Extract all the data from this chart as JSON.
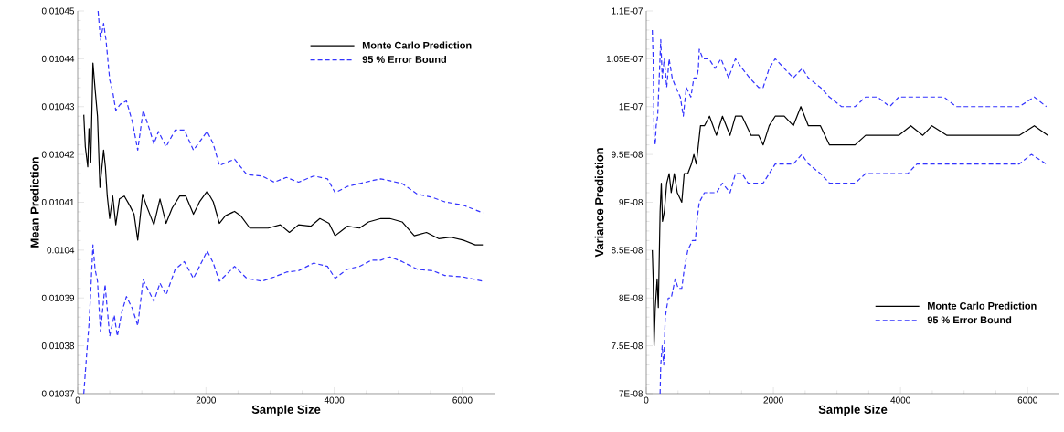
{
  "chart_data": [
    {
      "type": "line",
      "xlabel": "Sample Size",
      "ylabel": "Mean Prediction",
      "xlim": [
        0,
        6500
      ],
      "ylim": [
        0.01037,
        0.01045
      ],
      "xticks": [
        0,
        2000,
        4000,
        6000
      ],
      "yticks": [
        0.01037,
        0.01038,
        0.01039,
        0.0104,
        0.01041,
        0.01042,
        0.01043,
        0.01044,
        0.01045
      ],
      "legend": "top right",
      "series": [
        {
          "name": "Monte Carlo Prediction",
          "color": "#000000",
          "line_style": "solid",
          "x": [
            95,
            119,
            157,
            176,
            204,
            238,
            271,
            309,
            347,
            404,
            432,
            461,
            499,
            546,
            594,
            651,
            727,
            808,
            879,
            936,
            1012,
            1069,
            1188,
            1283,
            1378,
            1473,
            1591,
            1686,
            1805,
            1900,
            2019,
            2114,
            2209,
            2304,
            2446,
            2541,
            2684,
            2969,
            3159,
            3301,
            3444,
            3634,
            3776,
            3919,
            4014,
            4204,
            4394,
            4536,
            4726,
            4869,
            5059,
            5249,
            5439,
            5629,
            5819,
            6009,
            6199,
            6318
          ],
          "values": [
            0.0104283,
            0.0104216,
            0.0104174,
            0.0104254,
            0.0104184,
            0.0104391,
            0.0104337,
            0.010428,
            0.0104131,
            0.0104209,
            0.0104174,
            0.0104113,
            0.0104066,
            0.0104113,
            0.0104053,
            0.0104107,
            0.0104113,
            0.0104094,
            0.0104075,
            0.0104021,
            0.0104117,
            0.0104094,
            0.0104053,
            0.0104107,
            0.0104056,
            0.0104088,
            0.0104113,
            0.0104113,
            0.0104075,
            0.0104101,
            0.0104123,
            0.0104101,
            0.0104056,
            0.0104072,
            0.0104081,
            0.0104072,
            0.0104046,
            0.0104046,
            0.0104053,
            0.0104037,
            0.0104053,
            0.010405,
            0.0104066,
            0.0104056,
            0.010403,
            0.010405,
            0.0104046,
            0.0104059,
            0.0104066,
            0.0104066,
            0.0104059,
            0.010403,
            0.0104037,
            0.0104024,
            0.0104027,
            0.0104021,
            0.0104011,
            0.0104011
          ]
        },
        {
          "name": "95 % Error Bound",
          "color": "#3333ff",
          "line_style": "dashed",
          "x": [
            318,
            356,
            404,
            442,
            499,
            546,
            594,
            665,
            760,
            855,
            936,
            1021,
            1116,
            1188,
            1259,
            1378,
            1520,
            1663,
            1805,
            2019,
            2114,
            2209,
            2446,
            2636,
            2874,
            3064,
            3254,
            3444,
            3681,
            3895,
            4014,
            4204,
            4394,
            4584,
            4726,
            4869,
            5059,
            5296,
            5534,
            5724,
            6009,
            6318
          ],
          "values": [
            0.01045,
            0.0104439,
            0.0104474,
            0.0104439,
            0.0104356,
            0.0104331,
            0.0104292,
            0.0104305,
            0.0104312,
            0.0104267,
            0.0104209,
            0.0104292,
            0.0104254,
            0.0104222,
            0.0104248,
            0.0104216,
            0.0104251,
            0.0104251,
            0.0104209,
            0.0104248,
            0.0104222,
            0.0104177,
            0.010419,
            0.0104158,
            0.0104155,
            0.0104142,
            0.0104152,
            0.0104142,
            0.0104155,
            0.0104149,
            0.010412,
            0.0104133,
            0.0104139,
            0.0104145,
            0.0104149,
            0.0104145,
            0.0104139,
            0.0104117,
            0.010411,
            0.0104101,
            0.0104094,
            0.0104078
          ]
        },
        {
          "color": "#3333ff",
          "line_style": "dashed",
          "x": [
            95,
            143,
            176,
            204,
            238,
            271,
            309,
            356,
            427,
            499,
            570,
            618,
            689,
            760,
            855,
            936,
            1021,
            1188,
            1283,
            1378,
            1520,
            1663,
            1805,
            2019,
            2114,
            2209,
            2446,
            2636,
            2874,
            3064,
            3254,
            3444,
            3681,
            3895,
            4014,
            4204,
            4394,
            4584,
            4726,
            4869,
            5059,
            5296,
            5534,
            5724,
            6009,
            6318
          ],
          "values": [
            0.01037,
            0.0103788,
            0.0103845,
            0.0103915,
            0.0104011,
            0.010396,
            0.0103935,
            0.0103829,
            0.0103928,
            0.010382,
            0.0103864,
            0.010382,
            0.0103871,
            0.0103903,
            0.0103877,
            0.0103842,
            0.0103938,
            0.0103893,
            0.0103931,
            0.0103906,
            0.010396,
            0.0103976,
            0.0103941,
            0.0103998,
            0.0103973,
            0.0103935,
            0.0103966,
            0.0103941,
            0.0103935,
            0.0103944,
            0.0103954,
            0.0103957,
            0.0103973,
            0.0103966,
            0.0103941,
            0.010396,
            0.0103966,
            0.0103979,
            0.0103979,
            0.0103986,
            0.0103976,
            0.010396,
            0.0103957,
            0.0103947,
            0.0103944,
            0.0103935
          ]
        }
      ]
    },
    {
      "type": "line",
      "xlabel": "Sample Size",
      "ylabel": "Variance Prediction",
      "xlim": [
        0,
        6500
      ],
      "ylim": [
        7e-08,
        1.1e-07
      ],
      "xticks": [
        0,
        2000,
        4000,
        6000
      ],
      "yticks": [
        {
          "value": 7e-08,
          "label": "7E-08"
        },
        {
          "value": 7.5e-08,
          "label": "7.5E-08"
        },
        {
          "value": 8e-08,
          "label": "8E-08"
        },
        {
          "value": 8.5e-08,
          "label": "8.5E-08"
        },
        {
          "value": 9e-08,
          "label": "9E-08"
        },
        {
          "value": 9.5e-08,
          "label": "9.5E-08"
        },
        {
          "value": 1e-07,
          "label": "1E-07"
        },
        {
          "value": 1.05e-07,
          "label": "1.05E-07"
        },
        {
          "value": 1.1e-07,
          "label": "1.1E-07"
        }
      ],
      "legend": "bottom right",
      "series": [
        {
          "name": "Monte Carlo Prediction",
          "color": "#000000",
          "line_style": "solid",
          "x": [
            95,
            109,
            123,
            142,
            171,
            190,
            218,
            237,
            256,
            284,
            322,
            360,
            393,
            441,
            488,
            559,
            597,
            654,
            711,
            749,
            787,
            820,
            853,
            915,
            995,
            1104,
            1199,
            1318,
            1403,
            1507,
            1650,
            1768,
            1839,
            1934,
            2029,
            2171,
            2313,
            2432,
            2550,
            2740,
            2882,
            3072,
            3285,
            3451,
            3640,
            3830,
            3972,
            4162,
            4351,
            4494,
            4731,
            4920,
            5110,
            5299,
            5489,
            5679,
            5868,
            6105,
            6318
          ],
          "values": [
            8.5e-08,
            8.2e-08,
            7.5e-08,
            7.9e-08,
            8.2e-08,
            7.9e-08,
            8.9e-08,
            9.2e-08,
            8.8e-08,
            8.9e-08,
            9.2e-08,
            9.3e-08,
            9.1e-08,
            9.3e-08,
            9.1e-08,
            9e-08,
            9.3e-08,
            9.3e-08,
            9.4e-08,
            9.5e-08,
            9.4e-08,
            9.6e-08,
            9.8e-08,
            9.8e-08,
            9.9e-08,
            9.7e-08,
            9.9e-08,
            9.7e-08,
            9.9e-08,
            9.9e-08,
            9.7e-08,
            9.7e-08,
            9.6e-08,
            9.8e-08,
            9.9e-08,
            9.9e-08,
            9.8e-08,
            1e-07,
            9.8e-08,
            9.8e-08,
            9.6e-08,
            9.6e-08,
            9.6e-08,
            9.7e-08,
            9.7e-08,
            9.7e-08,
            9.7e-08,
            9.8e-08,
            9.7e-08,
            9.8e-08,
            9.7e-08,
            9.7e-08,
            9.7e-08,
            9.7e-08,
            9.7e-08,
            9.7e-08,
            9.7e-08,
            9.8e-08,
            9.7e-08
          ]
        },
        {
          "name": "95 % Error Bound",
          "color": "#3333ff",
          "line_style": "dashed",
          "x": [
            95,
            109,
            123,
            142,
            156,
            180,
            204,
            228,
            251,
            284,
            322,
            360,
            408,
            465,
            536,
            583,
            630,
            702,
            749,
            796,
            820,
            834,
            891,
            986,
            1081,
            1176,
            1294,
            1403,
            1507,
            1626,
            1768,
            1839,
            1934,
            2029,
            2171,
            2313,
            2455,
            2550,
            2740,
            2882,
            3072,
            3285,
            3451,
            3640,
            3830,
            3972,
            4162,
            4351,
            4517,
            4683,
            4873,
            5110,
            5299,
            5489,
            5679,
            5868,
            6105,
            6295
          ],
          "values": [
            1.08e-07,
            1.05e-07,
            9.7e-08,
            9.6e-08,
            9.8e-08,
            9.9e-08,
            1.03e-07,
            1.07e-07,
            1.03e-07,
            1.05e-07,
            1.02e-07,
            1.05e-07,
            1.03e-07,
            1.02e-07,
            1.01e-07,
            9.9e-08,
            1.02e-07,
            1.01e-07,
            1.03e-07,
            1.03e-07,
            1.04e-07,
            1.06e-07,
            1.05e-07,
            1.05e-07,
            1.04e-07,
            1.05e-07,
            1.03e-07,
            1.05e-07,
            1.04e-07,
            1.03e-07,
            1.02e-07,
            1.02e-07,
            1.04e-07,
            1.05e-07,
            1.04e-07,
            1.03e-07,
            1.04e-07,
            1.03e-07,
            1.02e-07,
            1.01e-07,
            1e-07,
            1e-07,
            1.01e-07,
            1.01e-07,
            1e-07,
            1.01e-07,
            1.01e-07,
            1.01e-07,
            1.01e-07,
            1.01e-07,
            1e-07,
            1e-07,
            1e-07,
            1e-07,
            1e-07,
            1e-07,
            1.01e-07,
            1e-07
          ]
        },
        {
          "color": "#3333ff",
          "line_style": "dashed",
          "x": [
            218,
            228,
            251,
            275,
            299,
            346,
            393,
            455,
            502,
            559,
            597,
            654,
            725,
            773,
            796,
            834,
            915,
            1010,
            1104,
            1199,
            1318,
            1403,
            1507,
            1602,
            1721,
            1839,
            1934,
            2029,
            2171,
            2313,
            2446,
            2550,
            2740,
            2882,
            3072,
            3285,
            3451,
            3640,
            3830,
            3972,
            4114,
            4257,
            4446,
            4636,
            4826,
            5015,
            5252,
            5489,
            5679,
            5868,
            6058,
            6295
          ],
          "values": [
            7e-08,
            7.3e-08,
            7.5e-08,
            7.3e-08,
            7.8e-08,
            8e-08,
            8e-08,
            8.2e-08,
            8.1e-08,
            8.1e-08,
            8.3e-08,
            8.5e-08,
            8.6e-08,
            8.6e-08,
            8.8e-08,
            9e-08,
            9.1e-08,
            9.1e-08,
            9.1e-08,
            9.2e-08,
            9.1e-08,
            9.3e-08,
            9.3e-08,
            9.2e-08,
            9.2e-08,
            9.2e-08,
            9.3e-08,
            9.4e-08,
            9.4e-08,
            9.4e-08,
            9.5e-08,
            9.4e-08,
            9.3e-08,
            9.2e-08,
            9.2e-08,
            9.2e-08,
            9.3e-08,
            9.3e-08,
            9.3e-08,
            9.3e-08,
            9.3e-08,
            9.4e-08,
            9.4e-08,
            9.4e-08,
            9.4e-08,
            9.4e-08,
            9.4e-08,
            9.4e-08,
            9.4e-08,
            9.4e-08,
            9.5e-08,
            9.4e-08
          ]
        }
      ]
    }
  ]
}
